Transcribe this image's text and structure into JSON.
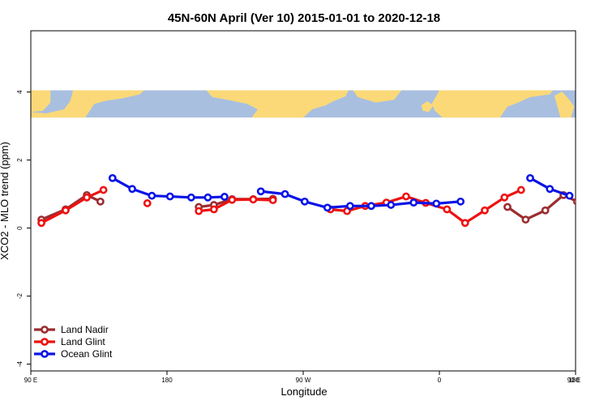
{
  "chart_data": {
    "type": "line",
    "title": "45N-60N April (Ver 10)   2015-01-01 to 2020-12-18",
    "xlabel": "Longitude",
    "ylabel": "XCO2 - MLO trend (ppm)",
    "xlim": [
      90,
      450
    ],
    "ylim": [
      -4.2,
      5.8
    ],
    "y_ticks": [
      -4,
      -2,
      0,
      2,
      4
    ],
    "y_tick_labels": [
      "-4",
      "-2",
      "0",
      "2",
      "4"
    ],
    "x_ticks": [
      90,
      180,
      270,
      360,
      450
    ],
    "x_tick_labels": [
      "90 E",
      "180",
      "90 W",
      "0",
      "90 E",
      "180"
    ],
    "x_tick_positions": [
      90,
      180,
      270,
      360,
      450,
      540
    ],
    "map_band": {
      "y_top": 4.05,
      "y_bottom": 3.25,
      "ocean_color": "#a8bfe0",
      "land_color": "#fbd978"
    },
    "legend_position": "bottom-left",
    "grid": false,
    "series": [
      {
        "name": "Land Nadir",
        "color": "#9b2d30",
        "segments": [
          [
            [
              97,
              0.25
            ],
            [
              113,
              0.55
            ],
            [
              127,
              0.97
            ],
            [
              136,
              0.78
            ]
          ],
          [
            [
              201,
              0.62
            ],
            [
              211,
              0.68
            ],
            [
              223,
              0.85
            ],
            [
              237,
              0.85
            ],
            [
              250,
              0.86
            ]
          ],
          [
            [
              405,
              0.62
            ],
            [
              417,
              0.25
            ],
            [
              430,
              0.52
            ],
            [
              442,
              0.97
            ],
            [
              451,
              0.78
            ]
          ]
        ]
      },
      {
        "name": "Land Glint",
        "color": "#ee1111",
        "segments": [
          [
            [
              97,
              0.15
            ],
            [
              113,
              0.52
            ],
            [
              127,
              0.9
            ],
            [
              138,
              1.12
            ]
          ],
          [
            [
              167,
              0.73
            ]
          ],
          [
            [
              201,
              0.5
            ],
            [
              211,
              0.55
            ],
            [
              223,
              0.83
            ],
            [
              237,
              0.84
            ],
            [
              250,
              0.82
            ]
          ],
          [
            [
              288,
              0.55
            ],
            [
              299,
              0.5
            ],
            [
              311,
              0.65
            ],
            [
              325,
              0.75
            ],
            [
              338,
              0.93
            ],
            [
              351,
              0.74
            ],
            [
              365,
              0.55
            ],
            [
              377,
              0.15
            ],
            [
              390,
              0.52
            ],
            [
              403,
              0.9
            ],
            [
              414,
              1.12
            ]
          ]
        ]
      },
      {
        "name": "Ocean Glint",
        "color": "#0a14e6",
        "segments": [
          [
            [
              144,
              1.47
            ],
            [
              157,
              1.15
            ],
            [
              170,
              0.95
            ],
            [
              182,
              0.93
            ],
            [
              196,
              0.9
            ],
            [
              207,
              0.9
            ],
            [
              218,
              0.92
            ]
          ],
          [
            [
              242,
              1.08
            ],
            [
              258,
              1.0
            ],
            [
              271,
              0.78
            ],
            [
              286,
              0.6
            ],
            [
              301,
              0.65
            ],
            [
              315,
              0.65
            ],
            [
              328,
              0.68
            ],
            [
              343,
              0.75
            ],
            [
              358,
              0.72
            ],
            [
              374,
              0.78
            ]
          ],
          [
            [
              420,
              1.47
            ],
            [
              433,
              1.15
            ],
            [
              446,
              0.95
            ]
          ]
        ]
      }
    ]
  }
}
